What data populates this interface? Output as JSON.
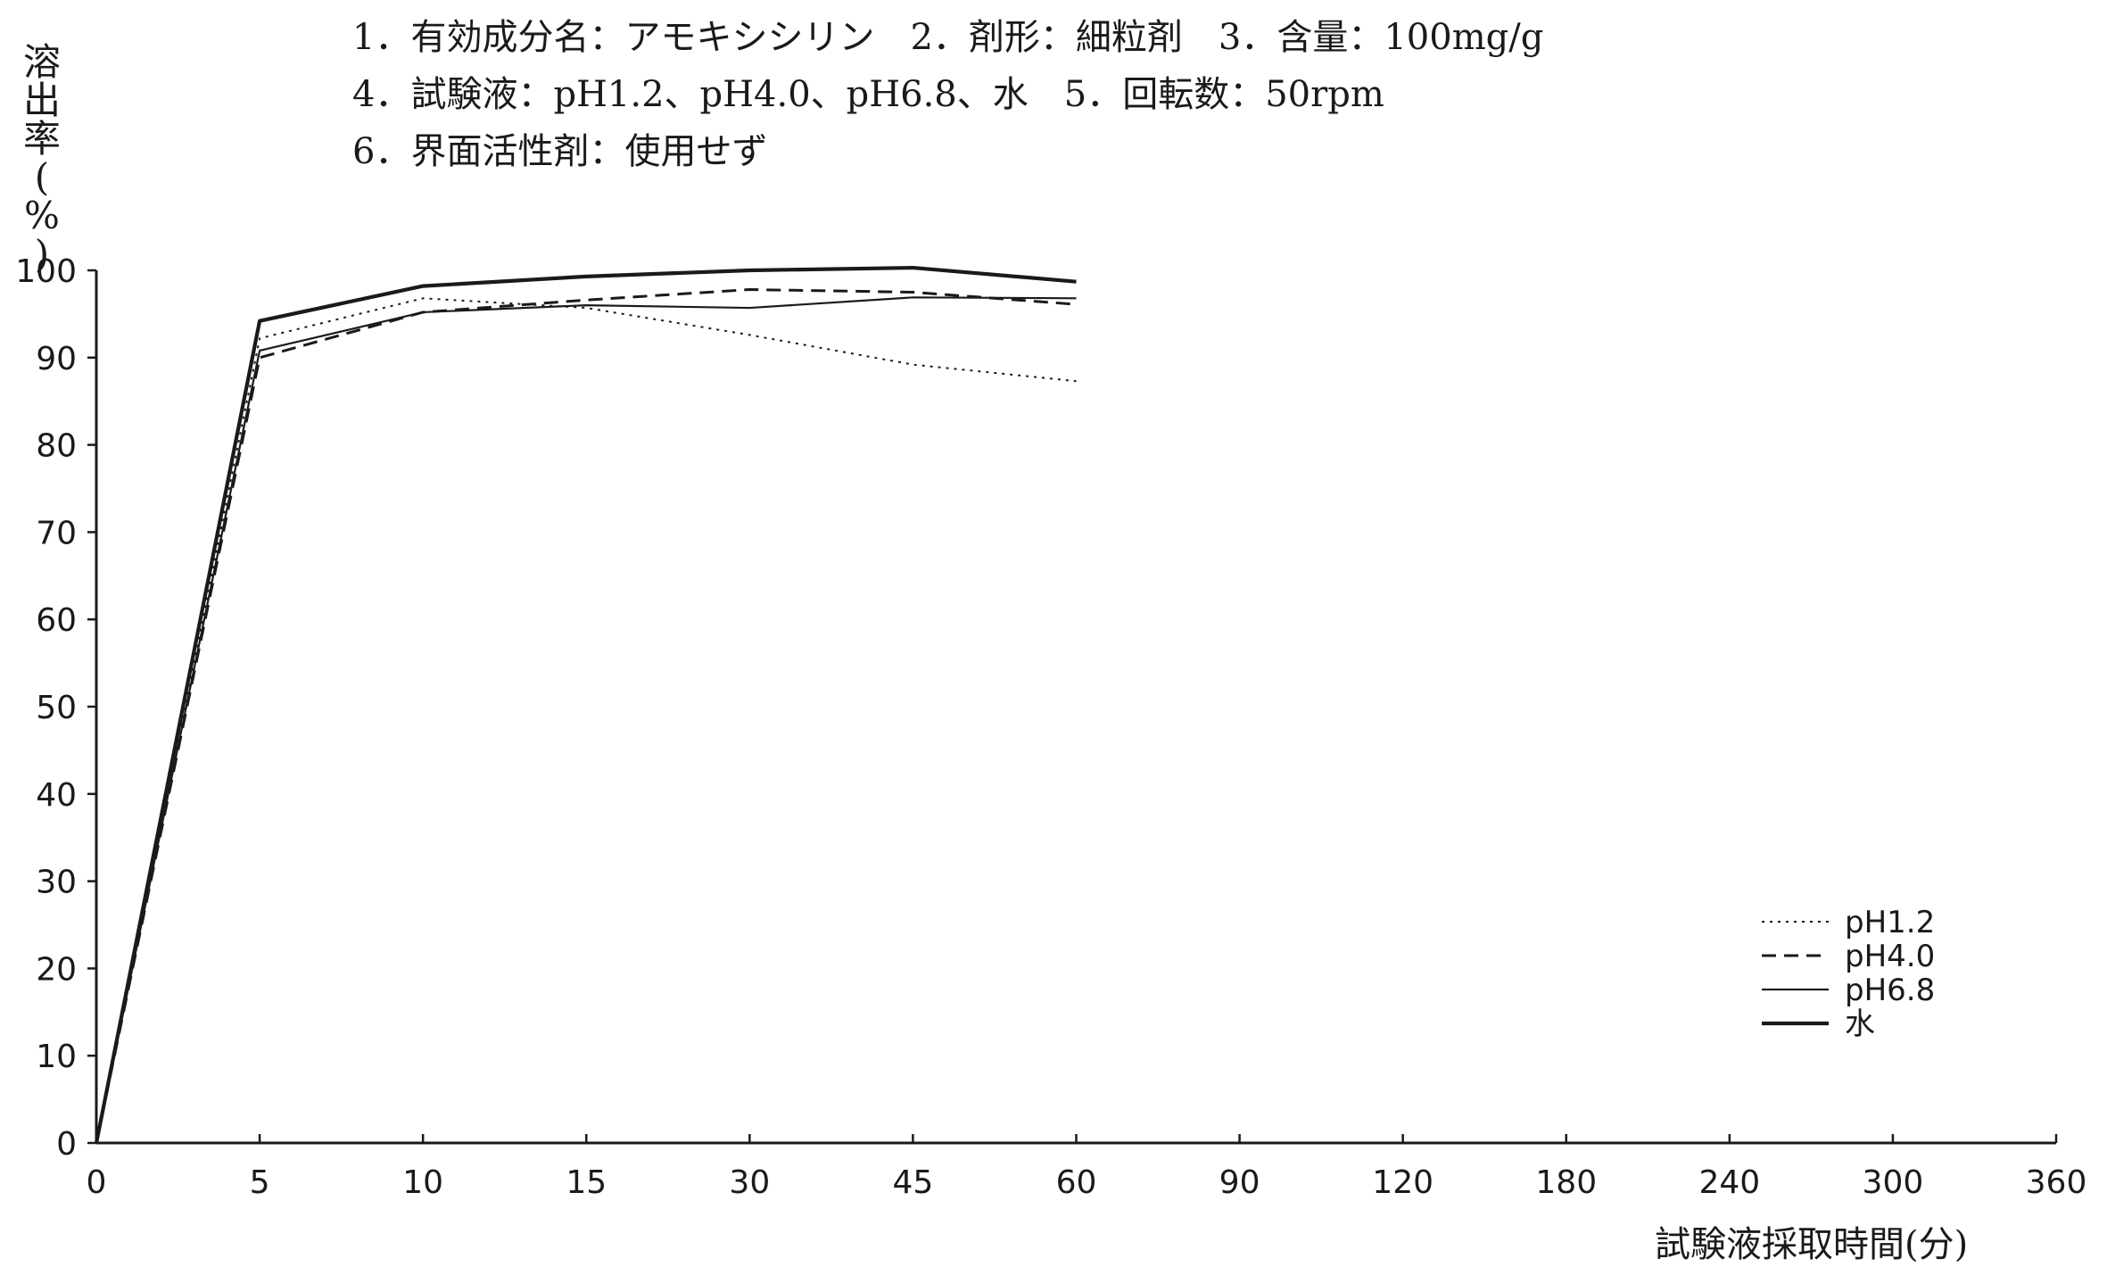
{
  "header": {
    "line1": "1．有効成分名：アモキシシリン　2．剤形：細粒剤　3．含量：100mg/g",
    "line2": "4．試験液：pH1.2、pH4.0、pH6.8、水　5．回転数：50rpm",
    "line3": "6．界面活性剤：使用せず"
  },
  "chart_data": {
    "type": "line",
    "title": "",
    "xlabel": "試験液採取時間(分)",
    "ylabel": "溶出率(%)",
    "x_ticks": [
      "0",
      "5",
      "10",
      "15",
      "30",
      "45",
      "60",
      "90",
      "120",
      "180",
      "240",
      "300",
      "360"
    ],
    "y_ticks": [
      "0",
      "10",
      "20",
      "30",
      "40",
      "50",
      "60",
      "70",
      "80",
      "90",
      "100"
    ],
    "ylim": [
      0,
      100
    ],
    "x_scale": "categorical",
    "grid": false,
    "legend_position": "bottom-right",
    "x": [
      0,
      5,
      10,
      15,
      30,
      45,
      60
    ],
    "series": [
      {
        "name": "pH1.2",
        "style": "dotted",
        "values": [
          0,
          92.2,
          96.8,
          95.7,
          92.6,
          89.2,
          87.3
        ]
      },
      {
        "name": "pH4.0",
        "style": "dashed",
        "values": [
          0,
          90.0,
          95.2,
          96.6,
          97.8,
          97.5,
          96.1
        ]
      },
      {
        "name": "pH6.8",
        "style": "solid-thin",
        "values": [
          0,
          90.8,
          95.2,
          96.0,
          95.7,
          96.9,
          96.8
        ]
      },
      {
        "name": "水",
        "style": "solid-thick",
        "values": [
          0,
          94.2,
          98.2,
          99.3,
          100.0,
          100.3,
          98.7
        ]
      }
    ]
  }
}
